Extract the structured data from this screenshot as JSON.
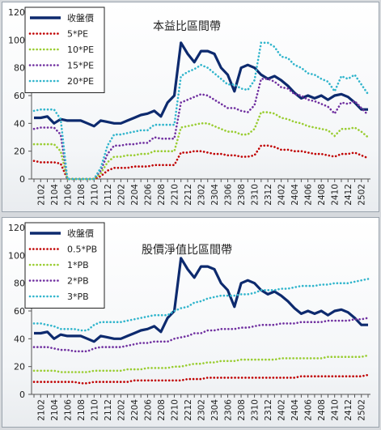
{
  "chart_data": [
    {
      "type": "line",
      "title": "本益比區間帶",
      "ylim": [
        0,
        120
      ],
      "yticks": [
        0,
        20,
        40,
        60,
        80,
        100,
        120
      ],
      "grid": false,
      "legend_position": "top-left",
      "x_tick_labels": [
        "2102",
        "2104",
        "2106",
        "2108",
        "2110",
        "2112",
        "2202",
        "2204",
        "2206",
        "2208",
        "2210",
        "2212",
        "2302",
        "2304",
        "2306",
        "2308",
        "2310",
        "2312",
        "2402",
        "2404",
        "2406",
        "2408",
        "2410",
        "2412",
        "2502"
      ],
      "x": [
        "2101",
        "2102",
        "2103",
        "2104",
        "2105",
        "2106",
        "2107",
        "2108",
        "2109",
        "2110",
        "2111",
        "2112",
        "2201",
        "2202",
        "2203",
        "2204",
        "2205",
        "2206",
        "2207",
        "2208",
        "2209",
        "2210",
        "2211",
        "2212",
        "2301",
        "2302",
        "2303",
        "2304",
        "2305",
        "2306",
        "2307",
        "2308",
        "2309",
        "2310",
        "2311",
        "2312",
        "2401",
        "2402",
        "2403",
        "2404",
        "2405",
        "2406",
        "2407",
        "2408",
        "2409",
        "2410",
        "2411",
        "2412",
        "2501",
        "2502",
        "2503"
      ],
      "series": [
        {
          "name": "收盤價",
          "style": "solid",
          "color": "#0d2a6e",
          "values": [
            44,
            44,
            45,
            40,
            43,
            42,
            42,
            42,
            40,
            38,
            42,
            41,
            40,
            40,
            42,
            44,
            46,
            47,
            49,
            45,
            55,
            60,
            98,
            90,
            84,
            92,
            92,
            90,
            80,
            75,
            63,
            80,
            82,
            80,
            75,
            72,
            74,
            71,
            67,
            62,
            58,
            60,
            58,
            60,
            57,
            60,
            61,
            59,
            55,
            50,
            50
          ]
        },
        {
          "name": "5*PE",
          "style": "dotted",
          "color": "#c00000",
          "values": [
            13,
            12,
            12,
            12,
            11,
            0,
            0,
            0,
            0,
            0,
            2,
            6,
            8,
            8,
            8,
            9,
            9,
            9,
            10,
            10,
            10,
            10,
            19,
            19,
            20,
            20,
            19,
            18,
            18,
            17,
            17,
            16,
            16,
            17,
            24,
            24,
            23,
            21,
            21,
            20,
            20,
            19,
            18,
            18,
            17,
            16,
            18,
            18,
            19,
            17,
            15
          ]
        },
        {
          "name": "10*PE",
          "style": "dotted",
          "color": "#9acd32",
          "values": [
            25,
            25,
            25,
            25,
            20,
            0,
            0,
            0,
            0,
            0,
            4,
            12,
            16,
            16,
            17,
            17,
            18,
            18,
            20,
            20,
            20,
            20,
            37,
            38,
            39,
            40,
            40,
            38,
            36,
            34,
            34,
            32,
            32,
            36,
            48,
            48,
            47,
            44,
            43,
            41,
            40,
            38,
            37,
            36,
            35,
            31,
            36,
            36,
            37,
            34,
            30
          ]
        },
        {
          "name": "15*PE",
          "style": "dotted",
          "color": "#7030a0",
          "values": [
            36,
            37,
            37,
            37,
            32,
            0,
            0,
            0,
            0,
            0,
            6,
            18,
            24,
            24,
            25,
            25,
            26,
            26,
            30,
            29,
            29,
            29,
            55,
            57,
            59,
            61,
            60,
            57,
            54,
            51,
            51,
            49,
            48,
            53,
            72,
            72,
            70,
            66,
            65,
            61,
            60,
            57,
            56,
            54,
            52,
            47,
            55,
            54,
            56,
            51,
            46
          ]
        },
        {
          "name": "20*PE",
          "style": "dotted",
          "color": "#31b5cc",
          "values": [
            49,
            50,
            50,
            50,
            43,
            0,
            0,
            0,
            0,
            0,
            8,
            24,
            32,
            32,
            33,
            34,
            35,
            35,
            39,
            39,
            39,
            39,
            74,
            77,
            79,
            82,
            80,
            76,
            72,
            68,
            68,
            65,
            64,
            71,
            98,
            98,
            95,
            88,
            87,
            82,
            80,
            76,
            75,
            72,
            70,
            63,
            74,
            72,
            75,
            68,
            61
          ]
        }
      ]
    },
    {
      "type": "line",
      "title": "股價淨值比區間帶",
      "ylim": [
        0,
        120
      ],
      "yticks": [
        0,
        20,
        40,
        60,
        80,
        100,
        120
      ],
      "grid": false,
      "legend_position": "top-left",
      "x_tick_labels": [
        "2102",
        "2104",
        "2106",
        "2108",
        "2110",
        "2112",
        "2202",
        "2204",
        "2206",
        "2208",
        "2210",
        "2212",
        "2302",
        "2304",
        "2306",
        "2308",
        "2310",
        "2312",
        "2402",
        "2404",
        "2406",
        "2408",
        "2410",
        "2412",
        "2502"
      ],
      "x": [
        "2101",
        "2102",
        "2103",
        "2104",
        "2105",
        "2106",
        "2107",
        "2108",
        "2109",
        "2110",
        "2111",
        "2112",
        "2201",
        "2202",
        "2203",
        "2204",
        "2205",
        "2206",
        "2207",
        "2208",
        "2209",
        "2210",
        "2211",
        "2212",
        "2301",
        "2302",
        "2303",
        "2304",
        "2305",
        "2306",
        "2307",
        "2308",
        "2309",
        "2310",
        "2311",
        "2312",
        "2401",
        "2402",
        "2403",
        "2404",
        "2405",
        "2406",
        "2407",
        "2408",
        "2409",
        "2410",
        "2411",
        "2412",
        "2501",
        "2502",
        "2503"
      ],
      "series": [
        {
          "name": "收盤價",
          "style": "solid",
          "color": "#0d2a6e",
          "values": [
            44,
            44,
            45,
            40,
            43,
            42,
            42,
            42,
            40,
            38,
            42,
            41,
            40,
            40,
            42,
            44,
            46,
            47,
            49,
            45,
            55,
            60,
            98,
            90,
            84,
            92,
            92,
            90,
            80,
            75,
            63,
            80,
            82,
            80,
            75,
            72,
            74,
            71,
            67,
            62,
            58,
            60,
            58,
            60,
            57,
            60,
            61,
            59,
            55,
            50,
            50
          ]
        },
        {
          "name": "0.5*PB",
          "style": "dotted",
          "color": "#c00000",
          "values": [
            9,
            9,
            9,
            9,
            9,
            9,
            9,
            8,
            8,
            9,
            9,
            9,
            9,
            9,
            9,
            10,
            10,
            10,
            10,
            10,
            10,
            10,
            10,
            11,
            11,
            11,
            12,
            12,
            12,
            12,
            12,
            12,
            12,
            12,
            12,
            12,
            12,
            12,
            12,
            12,
            13,
            13,
            13,
            13,
            13,
            13,
            13,
            13,
            13,
            13,
            14
          ]
        },
        {
          "name": "1*PB",
          "style": "dotted",
          "color": "#9acd32",
          "values": [
            17,
            17,
            17,
            17,
            16,
            16,
            16,
            16,
            16,
            17,
            17,
            17,
            17,
            17,
            18,
            18,
            18,
            19,
            19,
            19,
            19,
            20,
            20,
            21,
            22,
            22,
            23,
            23,
            24,
            24,
            24,
            25,
            25,
            25,
            25,
            25,
            25,
            26,
            26,
            26,
            26,
            26,
            26,
            26,
            27,
            27,
            27,
            27,
            27,
            27,
            28
          ]
        },
        {
          "name": "2*PB",
          "style": "dotted",
          "color": "#7030a0",
          "values": [
            34,
            34,
            34,
            33,
            32,
            32,
            31,
            31,
            31,
            33,
            34,
            34,
            34,
            34,
            35,
            36,
            37,
            37,
            38,
            38,
            38,
            40,
            41,
            42,
            44,
            44,
            46,
            46,
            47,
            47,
            47,
            48,
            48,
            49,
            50,
            50,
            50,
            51,
            51,
            51,
            52,
            52,
            52,
            52,
            53,
            53,
            53,
            53,
            54,
            54,
            55
          ]
        },
        {
          "name": "3*PB",
          "style": "dotted",
          "color": "#31b5cc",
          "values": [
            51,
            51,
            50,
            49,
            47,
            47,
            47,
            46,
            46,
            50,
            52,
            52,
            52,
            52,
            53,
            54,
            55,
            56,
            57,
            57,
            57,
            60,
            62,
            63,
            66,
            67,
            69,
            70,
            71,
            71,
            71,
            72,
            72,
            73,
            75,
            75,
            75,
            76,
            76,
            77,
            78,
            78,
            78,
            79,
            79,
            80,
            80,
            80,
            81,
            82,
            83
          ]
        }
      ]
    }
  ]
}
